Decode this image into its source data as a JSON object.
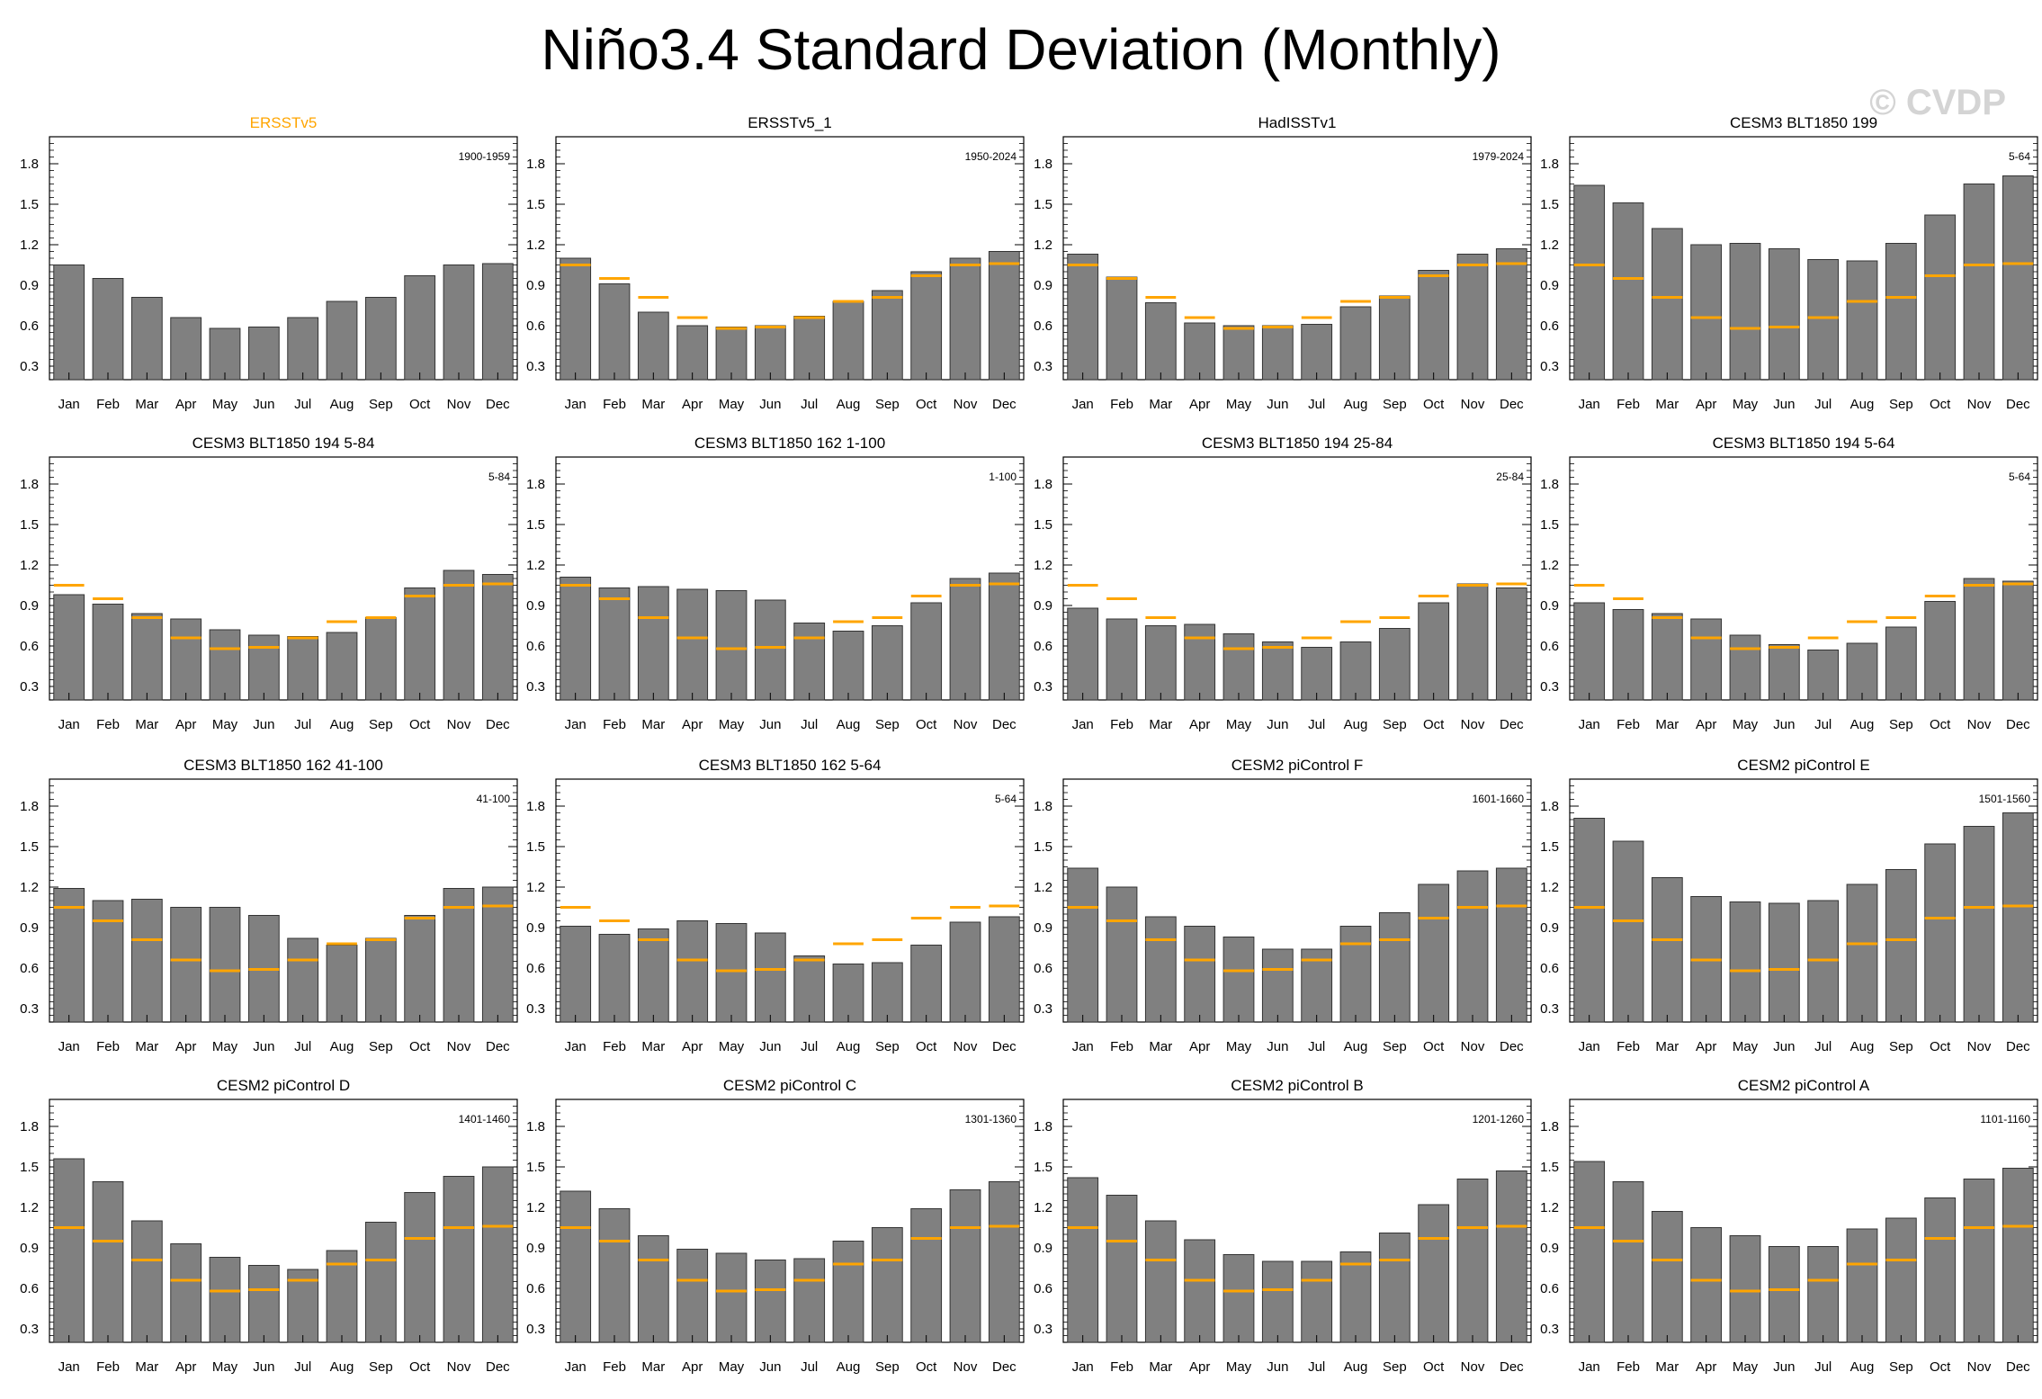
{
  "title": "Niño3.4 Standard Deviation (Monthly)",
  "watermark": "© CVDP",
  "colors": {
    "bar": "#808080",
    "bar_outline": "#333333",
    "reference": "#ffa500",
    "highlight_title": "#ffa500"
  },
  "chart_data": [
    {
      "type": "bar",
      "title": "ERSSTv5",
      "years": "1900-1959",
      "highlight": true,
      "categories": [
        "Jan",
        "Feb",
        "Mar",
        "Apr",
        "May",
        "Jun",
        "Jul",
        "Aug",
        "Sep",
        "Oct",
        "Nov",
        "Dec"
      ],
      "values": [
        1.05,
        0.95,
        0.81,
        0.66,
        0.58,
        0.59,
        0.66,
        0.78,
        0.81,
        0.97,
        1.05,
        1.06
      ],
      "reference": [],
      "ylim": [
        0.2,
        2.0
      ],
      "yticks": [
        0.3,
        0.6,
        0.9,
        1.2,
        1.5,
        1.8
      ]
    },
    {
      "type": "bar",
      "title": "ERSSTv5_1",
      "years": "1950-2024",
      "categories": [
        "Jan",
        "Feb",
        "Mar",
        "Apr",
        "May",
        "Jun",
        "Jul",
        "Aug",
        "Sep",
        "Oct",
        "Nov",
        "Dec"
      ],
      "values": [
        1.1,
        0.91,
        0.7,
        0.6,
        0.59,
        0.6,
        0.67,
        0.78,
        0.86,
        1.0,
        1.1,
        1.15
      ],
      "reference": [
        1.05,
        0.95,
        0.81,
        0.66,
        0.58,
        0.59,
        0.66,
        0.78,
        0.81,
        0.97,
        1.05,
        1.06
      ],
      "ylim": [
        0.2,
        2.0
      ],
      "yticks": [
        0.3,
        0.6,
        0.9,
        1.2,
        1.5,
        1.8
      ]
    },
    {
      "type": "bar",
      "title": "HadISSTv1",
      "years": "1979-2024",
      "categories": [
        "Jan",
        "Feb",
        "Mar",
        "Apr",
        "May",
        "Jun",
        "Jul",
        "Aug",
        "Sep",
        "Oct",
        "Nov",
        "Dec"
      ],
      "values": [
        1.13,
        0.96,
        0.77,
        0.62,
        0.6,
        0.6,
        0.61,
        0.74,
        0.82,
        1.01,
        1.13,
        1.17
      ],
      "reference": [
        1.05,
        0.95,
        0.81,
        0.66,
        0.58,
        0.59,
        0.66,
        0.78,
        0.81,
        0.97,
        1.05,
        1.06
      ],
      "ylim": [
        0.2,
        2.0
      ],
      "yticks": [
        0.3,
        0.6,
        0.9,
        1.2,
        1.5,
        1.8
      ]
    },
    {
      "type": "bar",
      "title": "CESM3 BLT1850 199",
      "years": "5-64",
      "categories": [
        "Jan",
        "Feb",
        "Mar",
        "Apr",
        "May",
        "Jun",
        "Jul",
        "Aug",
        "Sep",
        "Oct",
        "Nov",
        "Dec"
      ],
      "values": [
        1.64,
        1.51,
        1.32,
        1.2,
        1.21,
        1.17,
        1.09,
        1.08,
        1.21,
        1.42,
        1.65,
        1.71
      ],
      "reference": [
        1.05,
        0.95,
        0.81,
        0.66,
        0.58,
        0.59,
        0.66,
        0.78,
        0.81,
        0.97,
        1.05,
        1.06
      ],
      "ylim": [
        0.2,
        2.0
      ],
      "yticks": [
        0.3,
        0.6,
        0.9,
        1.2,
        1.5,
        1.8
      ]
    },
    {
      "type": "bar",
      "title": "CESM3 BLT1850 194 5-84",
      "years": "5-84",
      "categories": [
        "Jan",
        "Feb",
        "Mar",
        "Apr",
        "May",
        "Jun",
        "Jul",
        "Aug",
        "Sep",
        "Oct",
        "Nov",
        "Dec"
      ],
      "values": [
        0.98,
        0.91,
        0.84,
        0.8,
        0.72,
        0.68,
        0.67,
        0.7,
        0.81,
        1.03,
        1.16,
        1.13
      ],
      "reference": [
        1.05,
        0.95,
        0.81,
        0.66,
        0.58,
        0.59,
        0.66,
        0.78,
        0.81,
        0.97,
        1.05,
        1.06
      ],
      "ylim": [
        0.2,
        2.0
      ],
      "yticks": [
        0.3,
        0.6,
        0.9,
        1.2,
        1.5,
        1.8
      ]
    },
    {
      "type": "bar",
      "title": "CESM3 BLT1850 162 1-100",
      "years": "1-100",
      "categories": [
        "Jan",
        "Feb",
        "Mar",
        "Apr",
        "May",
        "Jun",
        "Jul",
        "Aug",
        "Sep",
        "Oct",
        "Nov",
        "Dec"
      ],
      "values": [
        1.11,
        1.03,
        1.04,
        1.02,
        1.01,
        0.94,
        0.77,
        0.71,
        0.75,
        0.92,
        1.1,
        1.14
      ],
      "reference": [
        1.05,
        0.95,
        0.81,
        0.66,
        0.58,
        0.59,
        0.66,
        0.78,
        0.81,
        0.97,
        1.05,
        1.06
      ],
      "ylim": [
        0.2,
        2.0
      ],
      "yticks": [
        0.3,
        0.6,
        0.9,
        1.2,
        1.5,
        1.8
      ]
    },
    {
      "type": "bar",
      "title": "CESM3 BLT1850 194 25-84",
      "years": "25-84",
      "categories": [
        "Jan",
        "Feb",
        "Mar",
        "Apr",
        "May",
        "Jun",
        "Jul",
        "Aug",
        "Sep",
        "Oct",
        "Nov",
        "Dec"
      ],
      "values": [
        0.88,
        0.8,
        0.75,
        0.76,
        0.69,
        0.63,
        0.59,
        0.63,
        0.73,
        0.92,
        1.06,
        1.03
      ],
      "reference": [
        1.05,
        0.95,
        0.81,
        0.66,
        0.58,
        0.59,
        0.66,
        0.78,
        0.81,
        0.97,
        1.05,
        1.06
      ],
      "ylim": [
        0.2,
        2.0
      ],
      "yticks": [
        0.3,
        0.6,
        0.9,
        1.2,
        1.5,
        1.8
      ]
    },
    {
      "type": "bar",
      "title": "CESM3 BLT1850 194 5-64",
      "years": "5-64",
      "categories": [
        "Jan",
        "Feb",
        "Mar",
        "Apr",
        "May",
        "Jun",
        "Jul",
        "Aug",
        "Sep",
        "Oct",
        "Nov",
        "Dec"
      ],
      "values": [
        0.92,
        0.87,
        0.84,
        0.8,
        0.68,
        0.61,
        0.57,
        0.62,
        0.74,
        0.93,
        1.1,
        1.08
      ],
      "reference": [
        1.05,
        0.95,
        0.81,
        0.66,
        0.58,
        0.59,
        0.66,
        0.78,
        0.81,
        0.97,
        1.05,
        1.06
      ],
      "ylim": [
        0.2,
        2.0
      ],
      "yticks": [
        0.3,
        0.6,
        0.9,
        1.2,
        1.5,
        1.8
      ]
    },
    {
      "type": "bar",
      "title": "CESM3 BLT1850 162 41-100",
      "years": "41-100",
      "categories": [
        "Jan",
        "Feb",
        "Mar",
        "Apr",
        "May",
        "Jun",
        "Jul",
        "Aug",
        "Sep",
        "Oct",
        "Nov",
        "Dec"
      ],
      "values": [
        1.19,
        1.1,
        1.11,
        1.05,
        1.05,
        0.99,
        0.82,
        0.77,
        0.82,
        0.99,
        1.19,
        1.2
      ],
      "reference": [
        1.05,
        0.95,
        0.81,
        0.66,
        0.58,
        0.59,
        0.66,
        0.78,
        0.81,
        0.97,
        1.05,
        1.06
      ],
      "ylim": [
        0.2,
        2.0
      ],
      "yticks": [
        0.3,
        0.6,
        0.9,
        1.2,
        1.5,
        1.8
      ]
    },
    {
      "type": "bar",
      "title": "CESM3 BLT1850 162 5-64",
      "years": "5-64",
      "categories": [
        "Jan",
        "Feb",
        "Mar",
        "Apr",
        "May",
        "Jun",
        "Jul",
        "Aug",
        "Sep",
        "Oct",
        "Nov",
        "Dec"
      ],
      "values": [
        0.91,
        0.85,
        0.89,
        0.95,
        0.93,
        0.86,
        0.69,
        0.63,
        0.64,
        0.77,
        0.94,
        0.98
      ],
      "reference": [
        1.05,
        0.95,
        0.81,
        0.66,
        0.58,
        0.59,
        0.66,
        0.78,
        0.81,
        0.97,
        1.05,
        1.06
      ],
      "ylim": [
        0.2,
        2.0
      ],
      "yticks": [
        0.3,
        0.6,
        0.9,
        1.2,
        1.5,
        1.8
      ]
    },
    {
      "type": "bar",
      "title": "CESM2 piControl F",
      "years": "1601-1660",
      "categories": [
        "Jan",
        "Feb",
        "Mar",
        "Apr",
        "May",
        "Jun",
        "Jul",
        "Aug",
        "Sep",
        "Oct",
        "Nov",
        "Dec"
      ],
      "values": [
        1.34,
        1.2,
        0.98,
        0.91,
        0.83,
        0.74,
        0.74,
        0.91,
        1.01,
        1.22,
        1.32,
        1.34
      ],
      "reference": [
        1.05,
        0.95,
        0.81,
        0.66,
        0.58,
        0.59,
        0.66,
        0.78,
        0.81,
        0.97,
        1.05,
        1.06
      ],
      "ylim": [
        0.2,
        2.0
      ],
      "yticks": [
        0.3,
        0.6,
        0.9,
        1.2,
        1.5,
        1.8
      ]
    },
    {
      "type": "bar",
      "title": "CESM2 piControl E",
      "years": "1501-1560",
      "categories": [
        "Jan",
        "Feb",
        "Mar",
        "Apr",
        "May",
        "Jun",
        "Jul",
        "Aug",
        "Sep",
        "Oct",
        "Nov",
        "Dec"
      ],
      "values": [
        1.71,
        1.54,
        1.27,
        1.13,
        1.09,
        1.08,
        1.1,
        1.22,
        1.33,
        1.52,
        1.65,
        1.75
      ],
      "reference": [
        1.05,
        0.95,
        0.81,
        0.66,
        0.58,
        0.59,
        0.66,
        0.78,
        0.81,
        0.97,
        1.05,
        1.06
      ],
      "ylim": [
        0.2,
        2.0
      ],
      "yticks": [
        0.3,
        0.6,
        0.9,
        1.2,
        1.5,
        1.8
      ]
    },
    {
      "type": "bar",
      "title": "CESM2 piControl D",
      "years": "1401-1460",
      "categories": [
        "Jan",
        "Feb",
        "Mar",
        "Apr",
        "May",
        "Jun",
        "Jul",
        "Aug",
        "Sep",
        "Oct",
        "Nov",
        "Dec"
      ],
      "values": [
        1.56,
        1.39,
        1.1,
        0.93,
        0.83,
        0.77,
        0.74,
        0.88,
        1.09,
        1.31,
        1.43,
        1.5
      ],
      "reference": [
        1.05,
        0.95,
        0.81,
        0.66,
        0.58,
        0.59,
        0.66,
        0.78,
        0.81,
        0.97,
        1.05,
        1.06
      ],
      "ylim": [
        0.2,
        2.0
      ],
      "yticks": [
        0.3,
        0.6,
        0.9,
        1.2,
        1.5,
        1.8
      ]
    },
    {
      "type": "bar",
      "title": "CESM2 piControl C",
      "years": "1301-1360",
      "categories": [
        "Jan",
        "Feb",
        "Mar",
        "Apr",
        "May",
        "Jun",
        "Jul",
        "Aug",
        "Sep",
        "Oct",
        "Nov",
        "Dec"
      ],
      "values": [
        1.32,
        1.19,
        0.99,
        0.89,
        0.86,
        0.81,
        0.82,
        0.95,
        1.05,
        1.19,
        1.33,
        1.39
      ],
      "reference": [
        1.05,
        0.95,
        0.81,
        0.66,
        0.58,
        0.59,
        0.66,
        0.78,
        0.81,
        0.97,
        1.05,
        1.06
      ],
      "ylim": [
        0.2,
        2.0
      ],
      "yticks": [
        0.3,
        0.6,
        0.9,
        1.2,
        1.5,
        1.8
      ]
    },
    {
      "type": "bar",
      "title": "CESM2 piControl B",
      "years": "1201-1260",
      "categories": [
        "Jan",
        "Feb",
        "Mar",
        "Apr",
        "May",
        "Jun",
        "Jul",
        "Aug",
        "Sep",
        "Oct",
        "Nov",
        "Dec"
      ],
      "values": [
        1.42,
        1.29,
        1.1,
        0.96,
        0.85,
        0.8,
        0.8,
        0.87,
        1.01,
        1.22,
        1.41,
        1.47
      ],
      "reference": [
        1.05,
        0.95,
        0.81,
        0.66,
        0.58,
        0.59,
        0.66,
        0.78,
        0.81,
        0.97,
        1.05,
        1.06
      ],
      "ylim": [
        0.2,
        2.0
      ],
      "yticks": [
        0.3,
        0.6,
        0.9,
        1.2,
        1.5,
        1.8
      ]
    },
    {
      "type": "bar",
      "title": "CESM2 piControl A",
      "years": "1101-1160",
      "categories": [
        "Jan",
        "Feb",
        "Mar",
        "Apr",
        "May",
        "Jun",
        "Jul",
        "Aug",
        "Sep",
        "Oct",
        "Nov",
        "Dec"
      ],
      "values": [
        1.54,
        1.39,
        1.17,
        1.05,
        0.99,
        0.91,
        0.91,
        1.04,
        1.12,
        1.27,
        1.41,
        1.49
      ],
      "reference": [
        1.05,
        0.95,
        0.81,
        0.66,
        0.58,
        0.59,
        0.66,
        0.78,
        0.81,
        0.97,
        1.05,
        1.06
      ],
      "ylim": [
        0.2,
        2.0
      ],
      "yticks": [
        0.3,
        0.6,
        0.9,
        1.2,
        1.5,
        1.8
      ]
    }
  ]
}
